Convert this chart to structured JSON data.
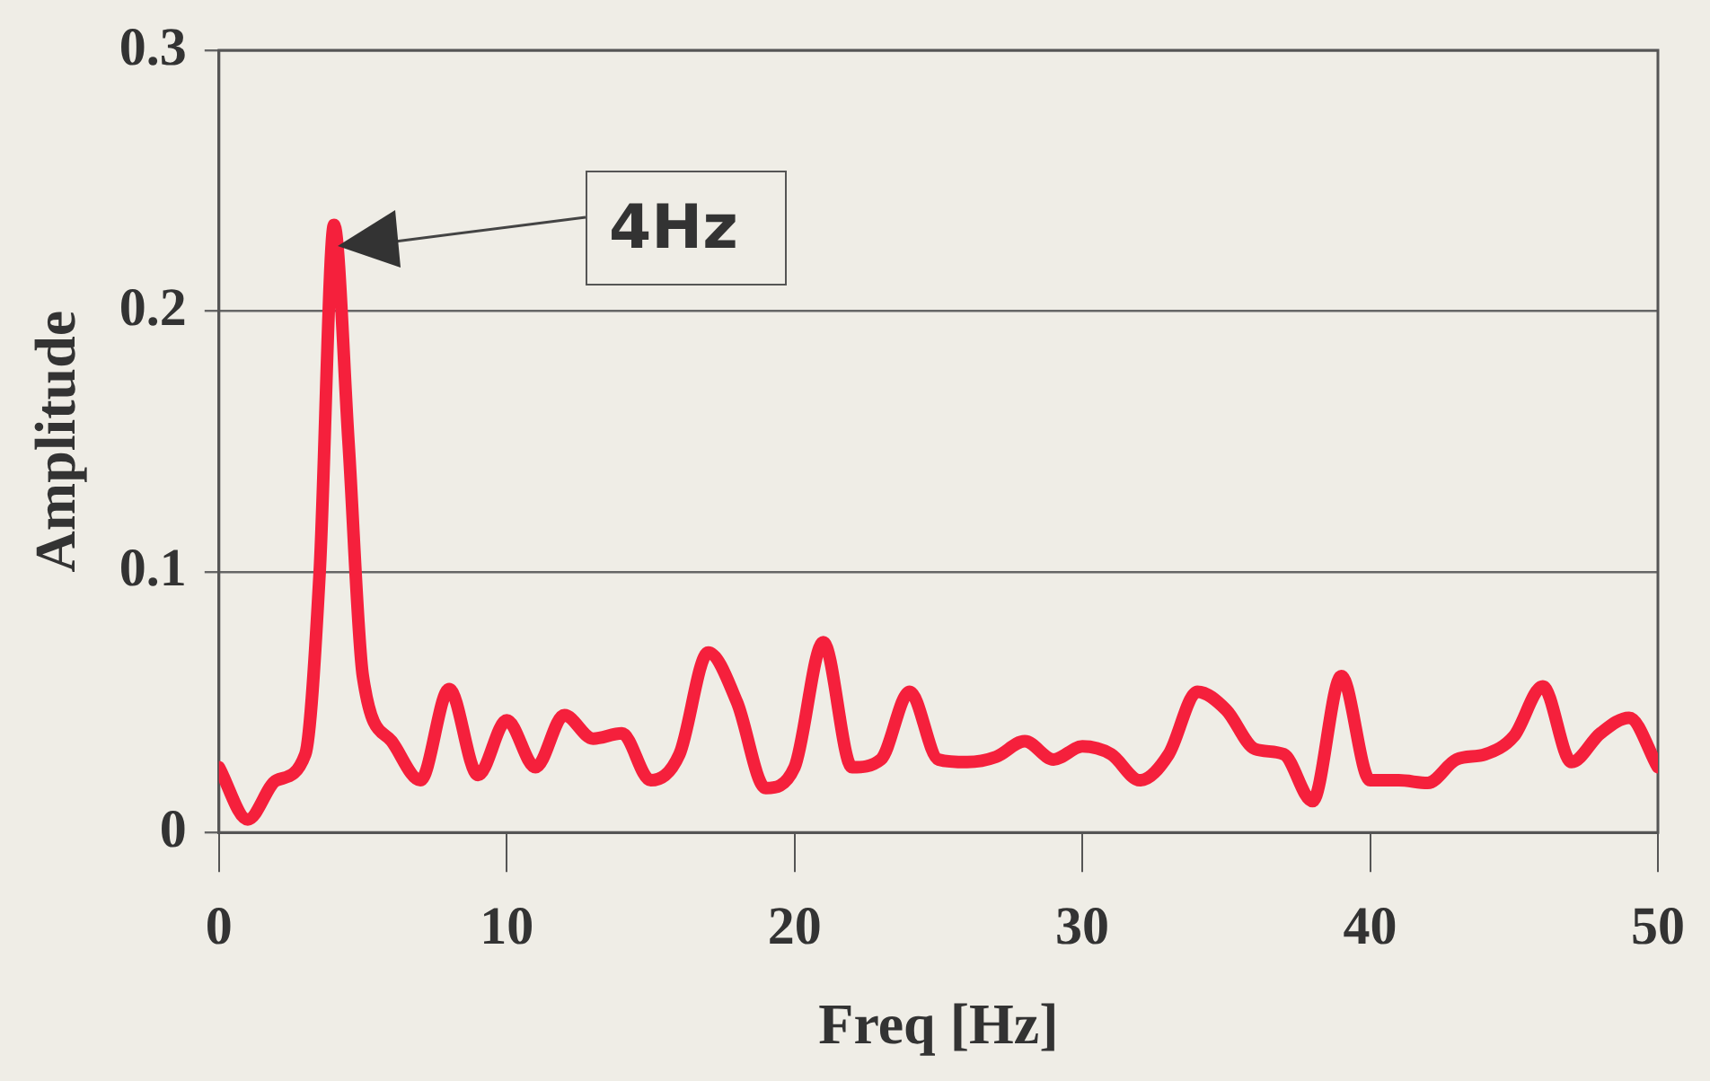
{
  "chart_data": {
    "type": "line",
    "xlabel": "Freq [Hz]",
    "ylabel": "Amplitude",
    "x": [
      0,
      1,
      2,
      3,
      3.5,
      4,
      4.5,
      5,
      6,
      7,
      8,
      9,
      10,
      11,
      12,
      13,
      14,
      15,
      16,
      17,
      18,
      19,
      20,
      21,
      22,
      23,
      24,
      25,
      26,
      27,
      28,
      29,
      30,
      31,
      32,
      33,
      34,
      35,
      36,
      37,
      38,
      39,
      40,
      41,
      42,
      43,
      44,
      45,
      46,
      47,
      48,
      49,
      50
    ],
    "series": [
      {
        "color": "#f5203c",
        "values": [
          0.025,
          0.005,
          0.02,
          0.03,
          0.1,
          0.233,
          0.15,
          0.06,
          0.035,
          0.02,
          0.055,
          0.022,
          0.043,
          0.025,
          0.045,
          0.036,
          0.038,
          0.02,
          0.03,
          0.069,
          0.05,
          0.017,
          0.025,
          0.073,
          0.025,
          0.028,
          0.054,
          0.028,
          0.027,
          0.029,
          0.035,
          0.028,
          0.033,
          0.03,
          0.02,
          0.03,
          0.054,
          0.047,
          0.032,
          0.03,
          0.012,
          0.06,
          0.02,
          0.02,
          0.019,
          0.028,
          0.03,
          0.037,
          0.056,
          0.027,
          0.038,
          0.044,
          0.025
        ]
      }
    ],
    "xlim": [
      0,
      50
    ],
    "xticks": [
      0,
      10,
      20,
      30,
      40,
      50
    ],
    "ylim": [
      0,
      0.3
    ],
    "yticks": [
      0,
      0.1,
      0.2,
      0.3
    ],
    "grid": "y",
    "marker": "none",
    "line_style": "solid",
    "legend": false,
    "annotations": [
      "4Hz"
    ]
  }
}
